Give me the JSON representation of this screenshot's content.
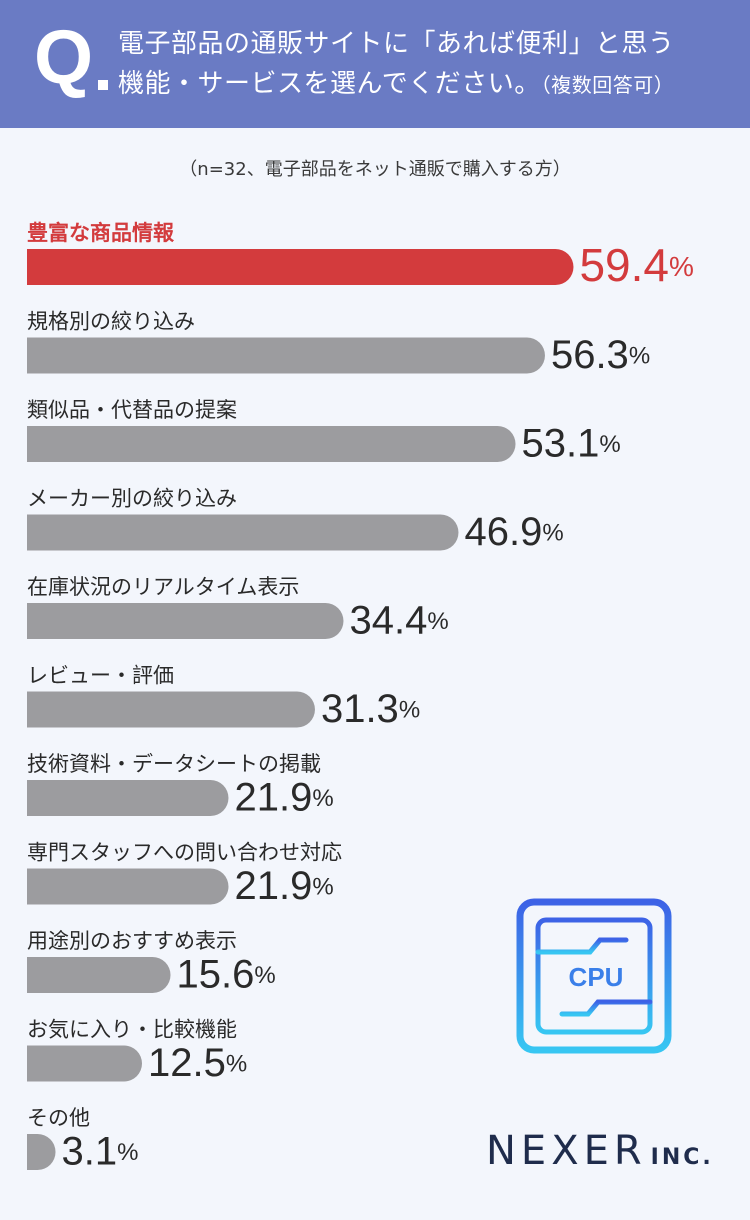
{
  "header": {
    "q_mark": "Q",
    "question_line1": "電子部品の通販サイトに「あれば便利」と思う",
    "question_line2": "機能・サービスを選んでください。",
    "question_note": "（複数回答可）"
  },
  "sample_note": "（n=32、電子部品をネット通販で購入する方）",
  "chart_data": {
    "type": "bar",
    "orientation": "horizontal",
    "categories": [
      "豊富な商品情報",
      "規格別の絞り込み",
      "類似品・代替品の提案",
      "メーカー別の絞り込み",
      "在庫状況のリアルタイム表示",
      "レビュー・評価",
      "技術資料・データシートの掲載",
      "専門スタッフへの問い合わせ対応",
      "用途別のおすすめ表示",
      "お気に入り・比較機能",
      "その他"
    ],
    "values": [
      59.4,
      56.3,
      53.1,
      46.9,
      34.4,
      31.3,
      21.9,
      21.9,
      15.6,
      12.5,
      3.1
    ],
    "value_labels": [
      "59.4",
      "56.3",
      "53.1",
      "46.9",
      "34.4",
      "31.3",
      "21.9",
      "21.9",
      "15.6",
      "12.5",
      "3.1"
    ],
    "unit": "%",
    "highlight_index": 0,
    "colors": {
      "highlight": "#d33b3d",
      "default": "#9c9c9f",
      "label": "#2a2a2a"
    }
  },
  "illustration": {
    "chip_label": "CPU"
  },
  "logo": {
    "main": "NEXER",
    "suffix": "INC."
  }
}
